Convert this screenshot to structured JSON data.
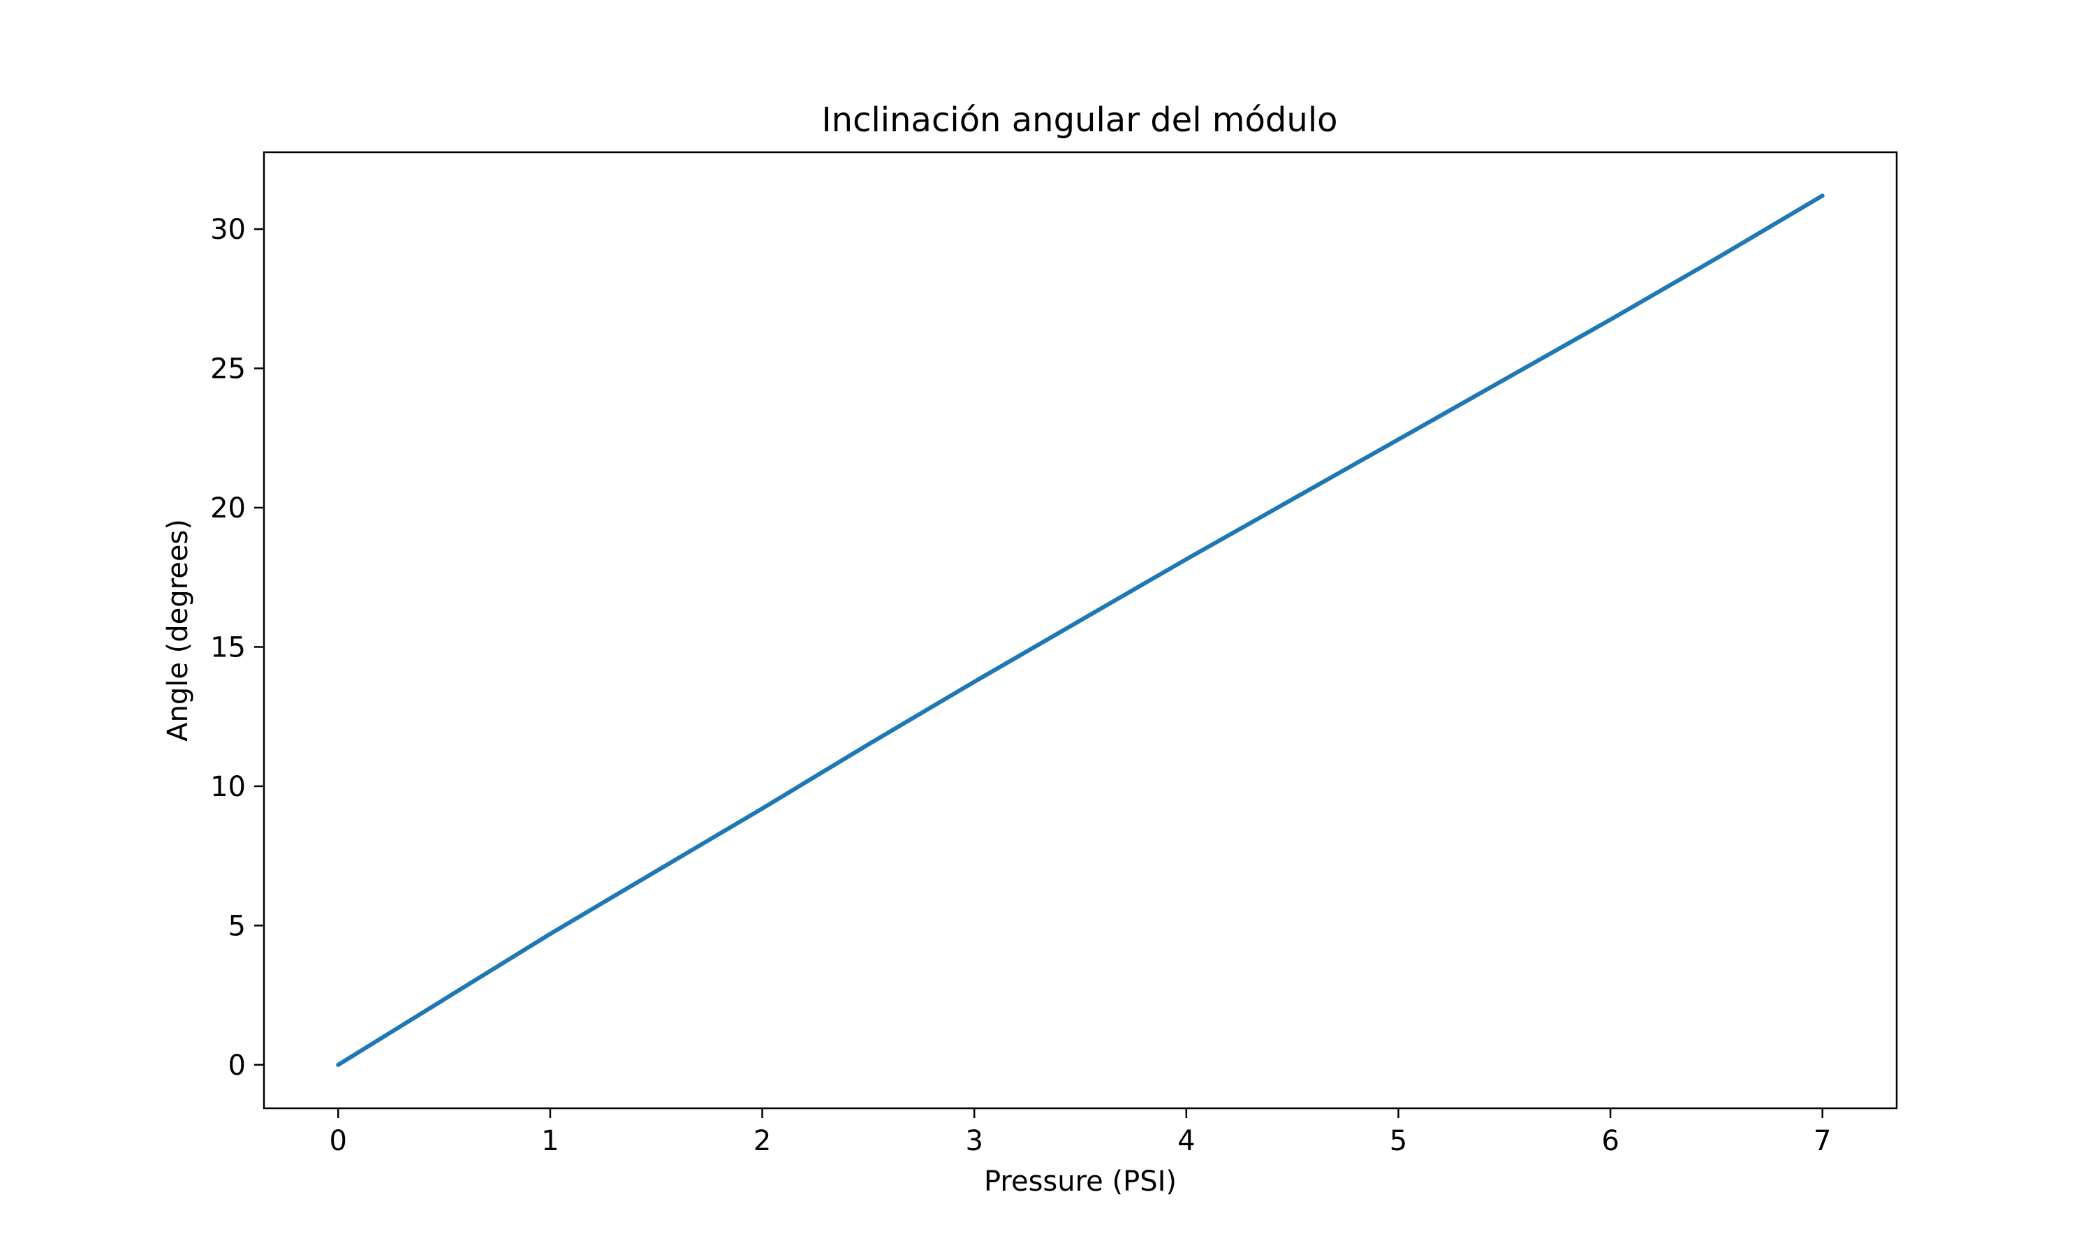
{
  "chart_data": {
    "type": "line",
    "title": "Inclinación angular del módulo",
    "xlabel": "Pressure (PSI)",
    "ylabel": "Angle (degrees)",
    "xlim": [
      -0.35,
      7.35
    ],
    "ylim": [
      -1.56,
      32.76
    ],
    "xticks": [
      0,
      1,
      2,
      3,
      4,
      5,
      6,
      7
    ],
    "yticks": [
      0,
      5,
      10,
      15,
      20,
      25,
      30
    ],
    "grid": false,
    "legend": "none",
    "series": [
      {
        "color": "#1f77b4",
        "x": [
          0,
          0.5,
          1,
          1.5,
          2,
          2.5,
          3,
          3.5,
          4,
          4.5,
          5,
          5.5,
          6,
          6.5,
          7
        ],
        "y": [
          0,
          2.35,
          4.7,
          6.95,
          9.2,
          11.5,
          13.75,
          15.95,
          18.15,
          20.3,
          22.45,
          24.6,
          26.75,
          28.95,
          31.2
        ]
      }
    ]
  }
}
